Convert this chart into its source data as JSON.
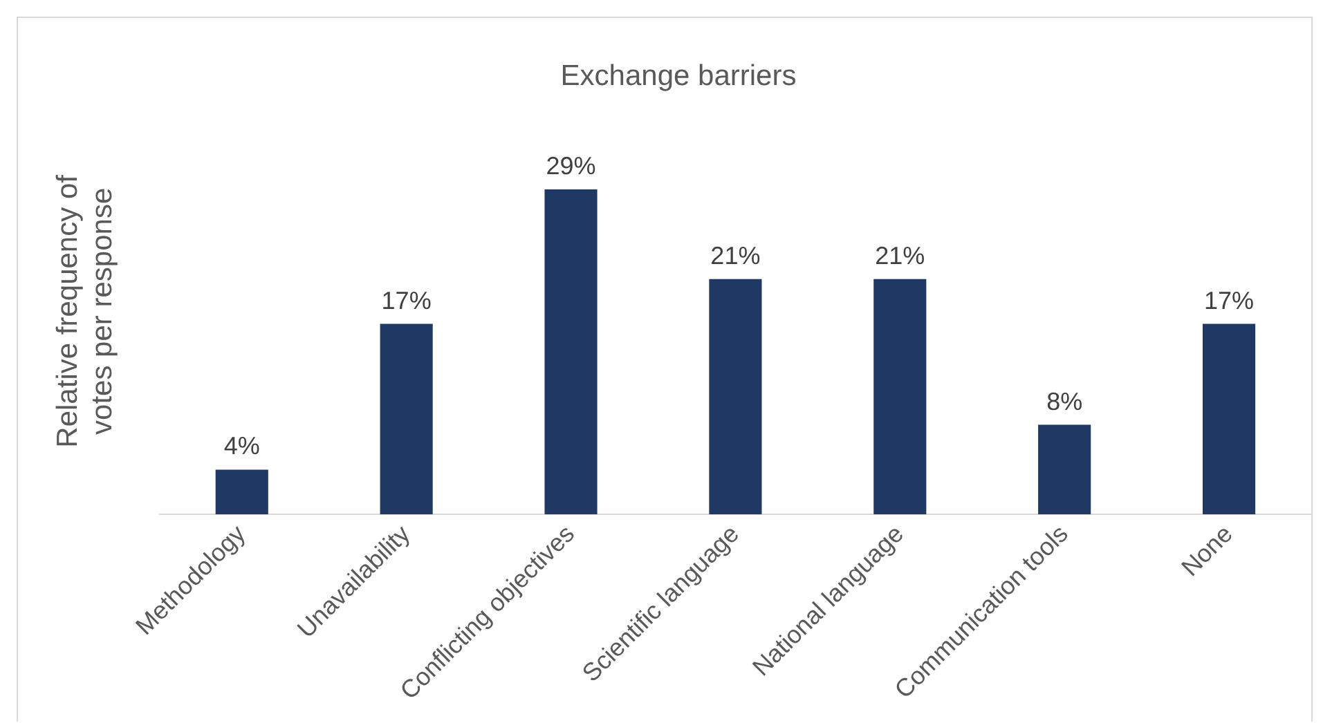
{
  "chart_data": {
    "type": "bar",
    "title": "Exchange barriers",
    "ylabel": "Relative frequency of votes per response",
    "categories": [
      "Methodology",
      "Unavailability",
      "Conflicting objectives",
      "Scientific language",
      "National language",
      "Communication tools",
      "None"
    ],
    "values": [
      4,
      17,
      29,
      21,
      21,
      8,
      17
    ],
    "value_labels": [
      "4%",
      "17%",
      "29%",
      "21%",
      "21%",
      "8%",
      "17%"
    ],
    "color": "#203864",
    "grid": false,
    "legend": false
  }
}
